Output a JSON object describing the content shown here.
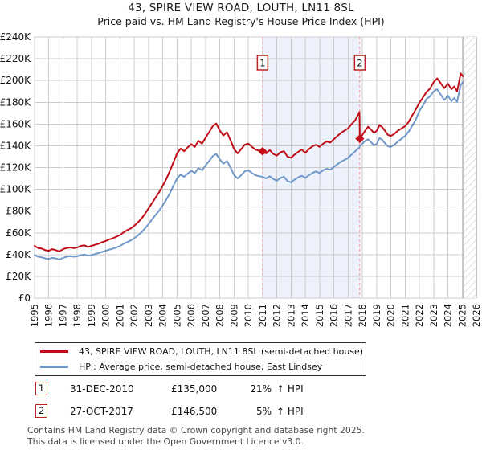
{
  "title": "43, SPIRE VIEW ROAD, LOUTH, LN11 8SL",
  "subtitle": "Price paid vs. HM Land Registry's House Price Index (HPI)",
  "chart_data": {
    "type": "line",
    "title": "43, SPIRE VIEW ROAD, LOUTH, LN11 8SL",
    "subtitle": "Price paid vs. HM Land Registry's House Price Index (HPI)",
    "values_unit": "GBP thousands",
    "xlim": [
      1995,
      2026
    ],
    "ylim": [
      0,
      240
    ],
    "grid": true,
    "legend_position": "bottom",
    "yticks": [
      0,
      20,
      40,
      60,
      80,
      100,
      120,
      140,
      160,
      180,
      200,
      220,
      240
    ],
    "ytick_labels": [
      "£0",
      "£20K",
      "£40K",
      "£60K",
      "£80K",
      "£100K",
      "£120K",
      "£140K",
      "£160K",
      "£180K",
      "£200K",
      "£220K",
      "£240K"
    ],
    "xticks": [
      1995,
      1996,
      1997,
      1998,
      1999,
      2000,
      2001,
      2002,
      2003,
      2004,
      2005,
      2006,
      2007,
      2008,
      2009,
      2010,
      2011,
      2012,
      2013,
      2014,
      2015,
      2016,
      2017,
      2018,
      2019,
      2020,
      2021,
      2022,
      2023,
      2024,
      2025,
      2026
    ],
    "shaded_span": [
      2011.0,
      2017.82
    ],
    "hatch_span": [
      2025.1,
      2026
    ],
    "colors": {
      "grid": "#cccccc",
      "shade": "#edf1fb",
      "dashed": "#f08c8c",
      "hatch_line": "#c4c4c4",
      "hatch_edge": "#8c8c8c",
      "marker_box_border": "#bb2222",
      "red": "#c10d18",
      "blue": "#6f98c9"
    },
    "x": [
      1995.0,
      1995.25,
      1995.5,
      1995.75,
      1996.0,
      1996.25,
      1996.5,
      1996.75,
      1997.0,
      1997.25,
      1997.5,
      1997.75,
      1998.0,
      1998.25,
      1998.5,
      1998.75,
      1999.0,
      1999.25,
      1999.5,
      1999.75,
      2000.0,
      2000.25,
      2000.5,
      2000.75,
      2001.0,
      2001.25,
      2001.5,
      2001.75,
      2002.0,
      2002.25,
      2002.5,
      2002.75,
      2003.0,
      2003.25,
      2003.5,
      2003.75,
      2004.0,
      2004.25,
      2004.5,
      2004.75,
      2005.0,
      2005.25,
      2005.5,
      2005.75,
      2006.0,
      2006.25,
      2006.5,
      2006.75,
      2007.0,
      2007.25,
      2007.5,
      2007.75,
      2008.0,
      2008.25,
      2008.5,
      2008.75,
      2009.0,
      2009.25,
      2009.5,
      2009.75,
      2010.0,
      2010.25,
      2010.5,
      2010.75,
      2011.0,
      2011.25,
      2011.5,
      2011.75,
      2012.0,
      2012.25,
      2012.5,
      2012.75,
      2013.0,
      2013.25,
      2013.5,
      2013.75,
      2014.0,
      2014.25,
      2014.5,
      2014.75,
      2015.0,
      2015.25,
      2015.5,
      2015.75,
      2016.0,
      2016.25,
      2016.5,
      2016.75,
      2017.0,
      2017.25,
      2017.5,
      2017.7,
      2017.8,
      2017.82,
      2018.0,
      2018.2,
      2018.4,
      2018.6,
      2018.8,
      2019.0,
      2019.2,
      2019.4,
      2019.6,
      2019.8,
      2020.0,
      2020.25,
      2020.5,
      2020.75,
      2021.0,
      2021.25,
      2021.5,
      2021.75,
      2022.0,
      2022.25,
      2022.5,
      2022.75,
      2023.0,
      2023.25,
      2023.5,
      2023.75,
      2024.0,
      2024.25,
      2024.45,
      2024.65,
      2024.9,
      2025.05
    ],
    "series": [
      {
        "name": "43, SPIRE VIEW ROAD, LOUTH, LN11 8SL (semi-detached house)",
        "color": "#c10d18",
        "values": [
          48,
          46,
          45.5,
          44,
          43.5,
          45,
          44,
          43,
          45,
          46,
          46.5,
          46,
          46.5,
          48,
          48.5,
          47,
          48,
          49,
          50,
          51.5,
          52.5,
          54,
          55,
          56.5,
          58,
          60.5,
          62.5,
          64,
          66.5,
          69.5,
          73,
          77.5,
          82.5,
          87.5,
          92.5,
          97.5,
          103.5,
          109.5,
          117,
          125,
          133,
          137.5,
          135,
          138.5,
          141.5,
          139,
          144.5,
          142,
          147.5,
          152.5,
          158,
          160.5,
          154,
          149.5,
          152.5,
          145,
          137,
          133,
          137,
          141,
          142,
          139,
          136.5,
          135.5,
          135,
          133,
          136,
          132.5,
          131,
          134,
          135,
          130,
          129,
          132,
          134.5,
          136.5,
          133.5,
          137,
          139.5,
          141,
          139,
          142,
          144,
          143,
          146,
          149,
          152,
          154,
          156,
          160,
          163.5,
          168.5,
          171,
          146.5,
          150,
          154,
          157.5,
          155,
          152,
          153.5,
          159,
          157,
          153.5,
          150,
          149,
          151,
          154,
          156,
          158,
          162,
          168,
          173.5,
          179.5,
          184.5,
          189.5,
          192.5,
          198.5,
          202,
          197.5,
          193,
          197,
          192,
          194.5,
          190,
          206.5,
          204
        ]
      },
      {
        "name": "HPI: Average price, semi-detached house, East Lindsey",
        "color": "#6f98c9",
        "values": [
          39.5,
          38,
          37.5,
          36.5,
          36,
          37,
          36.5,
          35.5,
          37,
          38,
          38.5,
          38,
          38.5,
          39.5,
          40,
          39,
          39.5,
          40.5,
          41.5,
          42.5,
          43.5,
          44.5,
          45.5,
          46.5,
          48,
          50,
          51.5,
          53,
          55,
          57.5,
          60.5,
          64,
          68,
          72.5,
          76.5,
          80.5,
          85.5,
          90.5,
          96.5,
          103.5,
          110,
          113.5,
          111.5,
          114.5,
          117,
          115,
          119.5,
          117.5,
          122,
          126,
          130.5,
          132.5,
          127.5,
          123.5,
          126,
          120,
          113,
          110,
          113,
          116.5,
          117.5,
          115,
          113,
          112,
          111.5,
          110,
          112,
          109.5,
          108,
          110.5,
          111.5,
          107.5,
          106.5,
          109,
          111,
          112.5,
          110.5,
          113,
          115,
          116.5,
          115,
          117.5,
          119,
          118,
          120.5,
          123,
          125.5,
          127,
          129,
          132,
          135,
          137.5,
          138.5,
          139.5,
          142,
          144.5,
          146,
          143.5,
          140.5,
          141.5,
          147,
          145.5,
          142,
          139.5,
          139,
          141,
          144,
          146.5,
          149,
          153,
          158.5,
          164,
          172,
          177,
          183,
          185.5,
          190,
          192,
          187,
          182,
          186,
          181,
          184,
          180.5,
          196,
          198.5
        ]
      }
    ],
    "sale_markers": [
      {
        "label": "1",
        "x": 2011.0,
        "value": 135.0
      },
      {
        "label": "2",
        "x": 2017.82,
        "value": 146.5
      }
    ]
  },
  "legend": {
    "items": [
      {
        "label": "43, SPIRE VIEW ROAD, LOUTH, LN11 8SL (semi-detached house)",
        "color": "#c10d18"
      },
      {
        "label": "HPI: Average price, semi-detached house, East Lindsey",
        "color": "#6f98c9"
      }
    ]
  },
  "annotations": [
    {
      "num": "1",
      "date": "31-DEC-2010",
      "price": "£135,000",
      "pct": "21%",
      "suffix": "↑ HPI"
    },
    {
      "num": "2",
      "date": "27-OCT-2017",
      "price": "£146,500",
      "pct": "5%",
      "suffix": "↑ HPI"
    }
  ],
  "footer": {
    "line1": "Contains HM Land Registry data © Crown copyright and database right 2025.",
    "line2": "This data is licensed under the Open Government Licence v3.0."
  }
}
